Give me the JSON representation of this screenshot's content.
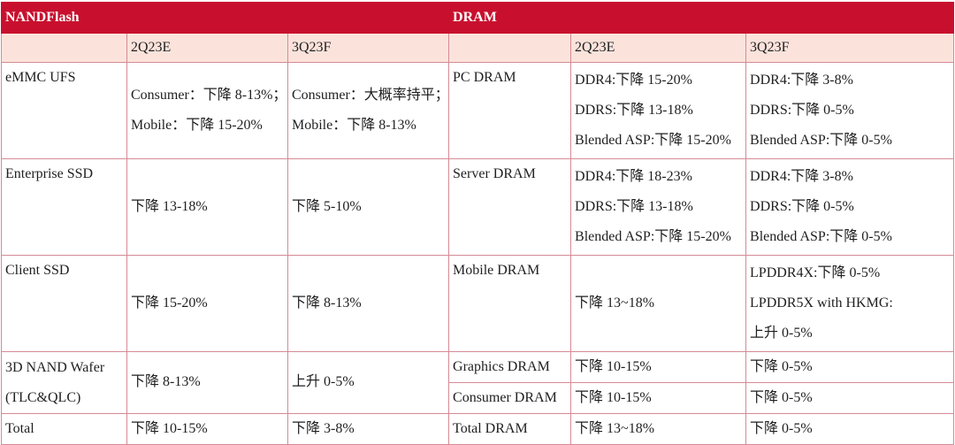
{
  "header": {
    "left_title": "NANDFlash",
    "right_title": "DRAM"
  },
  "subheader": {
    "nand_col1": "2Q23E",
    "nand_col2": "3Q23F",
    "dram_col1": "2Q23E",
    "dram_col2": "3Q23F"
  },
  "nand_rows": [
    {
      "label": "eMMC UFS",
      "q2": [
        "Consumer：下降 8-13%；",
        "Mobile：下降 15-20%"
      ],
      "q3": [
        "Consumer：大概率持平；",
        "Mobile：下降 8-13%"
      ]
    },
    {
      "label": "Enterprise SSD",
      "q2": "下降 13-18%",
      "q3": "下降 5-10%"
    },
    {
      "label": "Client SSD",
      "q2": "下降 15-20%",
      "q3": "下降 8-13%"
    },
    {
      "label": [
        "3D NAND Wafer",
        "(TLC&QLC)"
      ],
      "q2": "下降 8-13%",
      "q3": "上升 0-5%"
    },
    {
      "label": "Total",
      "q2": "下降 10-15%",
      "q3": "下降 3-8%"
    }
  ],
  "dram_rows": [
    {
      "label": "PC DRAM",
      "q2": [
        "DDR4:下降 15-20%",
        "DDRS:下降 13-18%",
        "Blended ASP:下降 15-20%"
      ],
      "q3": [
        "DDR4:下降 3-8%",
        "DDRS:下降 0-5%",
        "Blended ASP:下降 0-5%"
      ]
    },
    {
      "label": "Server DRAM",
      "q2": [
        "DDR4:下降 18-23%",
        "DDRS:下降 13-18%",
        "Blended ASP:下降 15-20%"
      ],
      "q3": [
        "DDR4:下降 3-8%",
        "DDRS:下降 0-5%",
        "Blended ASP:下降 0-5%"
      ]
    },
    {
      "label": "Mobile DRAM",
      "q2": "下降 13~18%",
      "q3": [
        "LPDDR4X:下降 0-5%",
        "LPDDR5X with HKMG:",
        "上升 0-5%"
      ]
    },
    {
      "label": "Graphics DRAM",
      "q2": "下降 10-15%",
      "q3": "下降 0-5%"
    },
    {
      "label": "Consumer DRAM",
      "q2": "下降 10-15%",
      "q3": "下降 0-5%"
    },
    {
      "label": "Total DRAM",
      "q2": "下降 13~18%",
      "q3": "下降 0-5%"
    }
  ]
}
